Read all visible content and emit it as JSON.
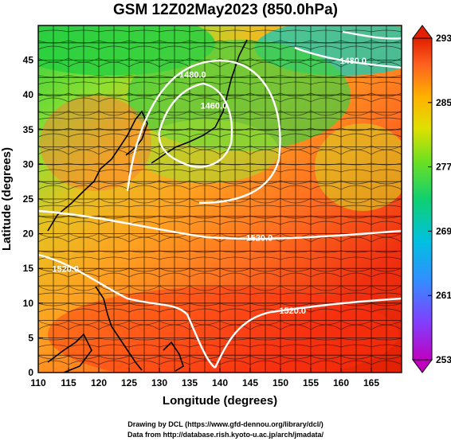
{
  "title": "GSM 12Z02May2023 (850.0hPa)",
  "x_axis": {
    "title": "Longitude (degrees)",
    "range": [
      110,
      170
    ],
    "ticks": [
      110,
      115,
      120,
      125,
      130,
      135,
      140,
      145,
      150,
      155,
      160,
      165
    ]
  },
  "y_axis": {
    "title": "Latitude  (degrees)",
    "range": [
      0,
      50
    ],
    "ticks": [
      0,
      5,
      10,
      15,
      20,
      25,
      30,
      35,
      40,
      45
    ]
  },
  "colorbar": {
    "range": [
      253,
      293
    ],
    "labels": [
      293,
      285,
      277,
      269,
      261,
      253
    ],
    "colors": [
      "#c000c0",
      "#6060ff",
      "#00b0ff",
      "#00d0a0",
      "#20d040",
      "#a0e020",
      "#f0e000",
      "#ffa000",
      "#ff6020",
      "#e02000"
    ]
  },
  "contour_labels": [
    {
      "text": "1520.0",
      "lon": 114.5,
      "lat": 14.5
    },
    {
      "text": "1520.0",
      "lon": 152.0,
      "lat": 8.5
    },
    {
      "text": "1520.0",
      "lon": 146.5,
      "lat": 19.0
    },
    {
      "text": "1460.0",
      "lon": 139.0,
      "lat": 38.0
    },
    {
      "text": "1480.0",
      "lon": 135.5,
      "lat": 42.5
    },
    {
      "text": "1480.0",
      "lon": 162.0,
      "lat": 44.5
    }
  ],
  "credits": {
    "line1": "Drawing by DCL (https://www.gfd-dennou.org/library/dcl/)",
    "line2": "Data from http://database.rish.kyoto-u.ac.jp/arch/jmadata/"
  }
}
